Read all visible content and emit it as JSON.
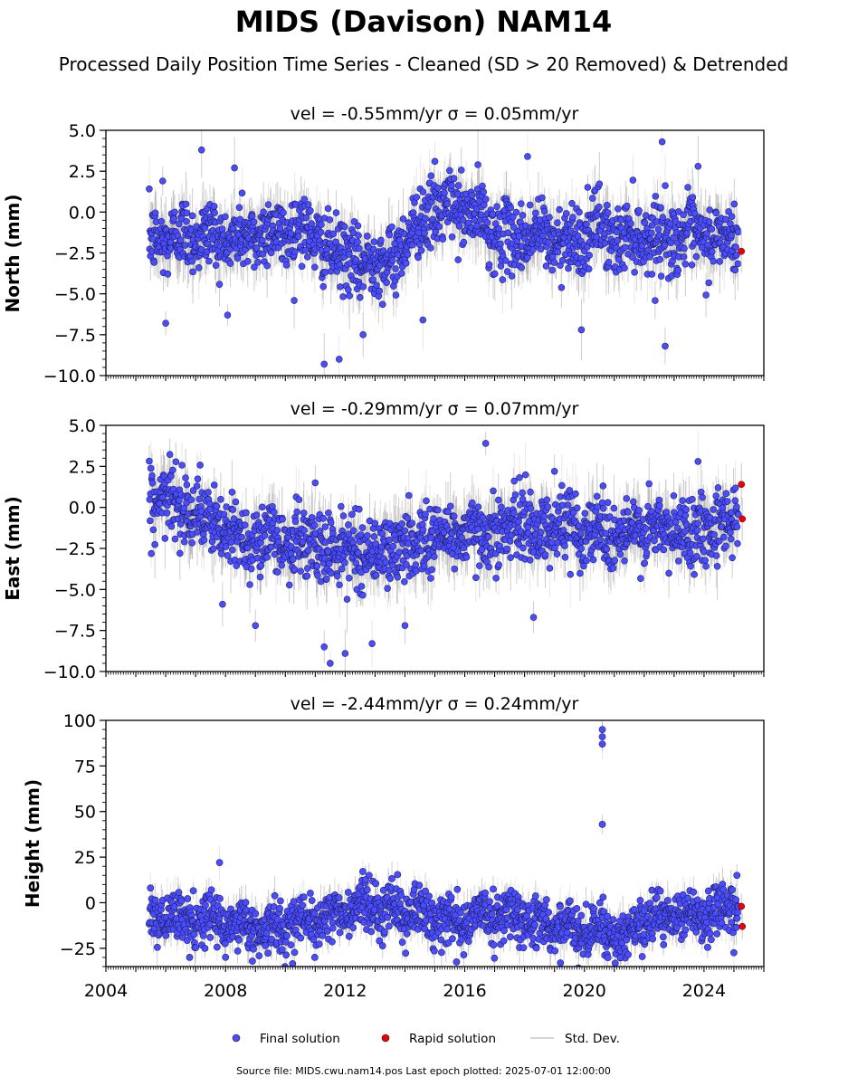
{
  "chart_data": {
    "type": "scatter",
    "title": "MIDS (Davison) NAM14",
    "subtitle": "Processed Daily Position Time Series - Cleaned (SD > 20 Removed) & Detrended",
    "xlim": [
      2004,
      2026
    ],
    "x_ticks": [
      "2004",
      "2008",
      "2012",
      "2016",
      "2020",
      "2024"
    ],
    "panels": [
      {
        "id": "north",
        "ylabel": "North (mm)",
        "title_text": "vel = -0.55mm/yr   σ = 0.05mm/yr",
        "ylim": [
          -10,
          5
        ],
        "y_ticks": [
          "5.0",
          "2.5",
          "0.0",
          "−2.5",
          "−5.0",
          "−7.5",
          "−10.0"
        ],
        "final_series_approx": {
          "x": [
            2005.5,
            2006.0,
            2006.5,
            2007.0,
            2007.5,
            2008.0,
            2008.5,
            2009.0,
            2009.5,
            2010.0,
            2010.5,
            2011.0,
            2011.5,
            2012.0,
            2012.5,
            2013.0,
            2013.5,
            2014.0,
            2014.5,
            2015.0,
            2015.5,
            2016.0,
            2016.5,
            2017.0,
            2017.5,
            2018.0,
            2018.5,
            2019.0,
            2019.5,
            2020.0,
            2020.5,
            2021.0,
            2021.5,
            2022.0,
            2022.5,
            2023.0,
            2023.5,
            2024.0,
            2024.5,
            2025.0
          ],
          "y": [
            -1.5,
            -2.0,
            -1.0,
            -1.8,
            -1.0,
            -2.2,
            -1.2,
            -1.8,
            -0.8,
            -1.6,
            -0.6,
            -1.8,
            -2.4,
            -2.6,
            -3.4,
            -2.8,
            -3.2,
            -1.8,
            -0.4,
            -0.2,
            0.6,
            -0.3,
            0.0,
            -1.6,
            -1.4,
            -1.8,
            -1.0,
            -2.2,
            -1.2,
            -2.0,
            -0.4,
            -2.2,
            -1.0,
            -1.8,
            -1.2,
            -1.8,
            -1.0,
            -2.0,
            -1.4,
            -1.8
          ]
        },
        "outliers": [
          {
            "x": 2011.3,
            "y": -9.3
          },
          {
            "x": 2011.8,
            "y": -9.0
          },
          {
            "x": 2012.6,
            "y": -7.5
          },
          {
            "x": 2005.9,
            "y": 1.9
          },
          {
            "x": 2007.2,
            "y": 3.8
          },
          {
            "x": 2008.3,
            "y": 2.7
          },
          {
            "x": 2015.0,
            "y": 3.1
          },
          {
            "x": 2018.1,
            "y": 3.4
          },
          {
            "x": 2022.6,
            "y": 4.3
          },
          {
            "x": 2023.8,
            "y": 2.8
          },
          {
            "x": 2022.7,
            "y": -8.2
          },
          {
            "x": 2019.9,
            "y": -7.2
          },
          {
            "x": 2014.6,
            "y": -6.6
          },
          {
            "x": 2006.0,
            "y": -6.8
          }
        ],
        "rapid_solution": [
          {
            "x": 2025.25,
            "y": -2.4
          }
        ]
      },
      {
        "id": "east",
        "ylabel": "East (mm)",
        "title_text": "vel = -0.29mm/yr   σ = 0.07mm/yr",
        "ylim": [
          -10,
          5
        ],
        "y_ticks": [
          "5.0",
          "2.5",
          "0.0",
          "−2.5",
          "−5.0",
          "−7.5",
          "−10.0"
        ],
        "final_series_approx": {
          "x": [
            2005.5,
            2006.0,
            2006.5,
            2007.0,
            2007.5,
            2008.0,
            2008.5,
            2009.0,
            2009.5,
            2010.0,
            2010.5,
            2011.0,
            2011.5,
            2012.0,
            2012.5,
            2013.0,
            2013.5,
            2014.0,
            2014.5,
            2015.0,
            2015.5,
            2016.0,
            2016.5,
            2017.0,
            2017.5,
            2018.0,
            2018.5,
            2019.0,
            2019.5,
            2020.0,
            2020.5,
            2021.0,
            2021.5,
            2022.0,
            2022.5,
            2023.0,
            2023.5,
            2024.0,
            2024.5,
            2025.0
          ],
          "y": [
            0.2,
            0.5,
            0.3,
            -0.2,
            -1.0,
            -1.6,
            -1.8,
            -2.0,
            -1.8,
            -2.2,
            -2.0,
            -2.4,
            -2.6,
            -2.4,
            -2.8,
            -2.6,
            -2.8,
            -2.4,
            -2.0,
            -1.8,
            -1.6,
            -1.8,
            -1.4,
            -1.6,
            -1.2,
            -1.0,
            -1.4,
            -1.2,
            -1.0,
            -1.6,
            -1.0,
            -2.0,
            -1.4,
            -1.6,
            -1.2,
            -1.8,
            -1.2,
            -1.4,
            -0.8,
            -0.6
          ]
        },
        "outliers": [
          {
            "x": 2016.7,
            "y": 3.9
          },
          {
            "x": 2011.5,
            "y": -9.5
          },
          {
            "x": 2011.3,
            "y": -8.5
          },
          {
            "x": 2012.0,
            "y": -8.9
          },
          {
            "x": 2012.9,
            "y": -8.3
          },
          {
            "x": 2009.0,
            "y": -7.2
          },
          {
            "x": 2014.0,
            "y": -7.2
          },
          {
            "x": 2018.3,
            "y": -6.7
          },
          {
            "x": 2023.8,
            "y": 2.8
          },
          {
            "x": 2019.0,
            "y": 2.2
          },
          {
            "x": 2011.0,
            "y": 1.5
          },
          {
            "x": 2007.9,
            "y": -5.9
          }
        ],
        "rapid_solution": [
          {
            "x": 2025.25,
            "y": 1.4
          },
          {
            "x": 2025.28,
            "y": -0.7
          }
        ]
      },
      {
        "id": "height",
        "ylabel": "Height (mm)",
        "title_text": "vel = -2.44mm/yr   σ = 0.24mm/yr",
        "ylim": [
          -35,
          100
        ],
        "y_ticks": [
          "100",
          "75",
          "50",
          "25",
          "0",
          "−25"
        ],
        "final_series_approx": {
          "x": [
            2005.5,
            2006.0,
            2006.5,
            2007.0,
            2007.5,
            2008.0,
            2008.5,
            2009.0,
            2009.5,
            2010.0,
            2010.5,
            2011.0,
            2011.5,
            2012.0,
            2012.5,
            2013.0,
            2013.5,
            2014.0,
            2014.5,
            2015.0,
            2015.5,
            2016.0,
            2016.5,
            2017.0,
            2017.5,
            2018.0,
            2018.5,
            2019.0,
            2019.5,
            2020.0,
            2020.5,
            2021.0,
            2021.5,
            2022.0,
            2022.5,
            2023.0,
            2023.5,
            2024.0,
            2024.5,
            2025.0
          ],
          "y": [
            -8,
            -12,
            -6,
            -14,
            -4,
            -16,
            -8,
            -18,
            -10,
            -16,
            -6,
            -14,
            -4,
            -8,
            0,
            -6,
            2,
            -10,
            -2,
            -12,
            -6,
            -14,
            -4,
            -10,
            -2,
            -12,
            -8,
            -16,
            -10,
            -18,
            -12,
            -20,
            -14,
            -12,
            -6,
            -10,
            -4,
            -8,
            -2,
            -4
          ]
        },
        "outliers": [
          {
            "x": 2020.6,
            "y": 95
          },
          {
            "x": 2020.6,
            "y": 91
          },
          {
            "x": 2020.6,
            "y": 87
          },
          {
            "x": 2020.6,
            "y": 43
          },
          {
            "x": 2007.8,
            "y": 22
          },
          {
            "x": 2012.8,
            "y": 15
          },
          {
            "x": 2025.1,
            "y": 15
          },
          {
            "x": 2006.8,
            "y": -30
          },
          {
            "x": 2008.9,
            "y": -32
          },
          {
            "x": 2021.2,
            "y": -30
          },
          {
            "x": 2019.2,
            "y": -33
          }
        ],
        "rapid_solution": [
          {
            "x": 2025.25,
            "y": -2
          },
          {
            "x": 2025.28,
            "y": -13
          }
        ]
      }
    ],
    "legend": {
      "placement": "bottom-center",
      "items": [
        {
          "label": "Final solution",
          "color": "#4a4dff"
        },
        {
          "label": "Rapid solution",
          "color": "#e8000b"
        },
        {
          "label": "Std. Dev.",
          "color": "#c8c8c8"
        }
      ]
    },
    "footer": "Source file: MIDS.cwu.nam14.pos  Last epoch plotted: 2025-07-01 12:00:00"
  }
}
